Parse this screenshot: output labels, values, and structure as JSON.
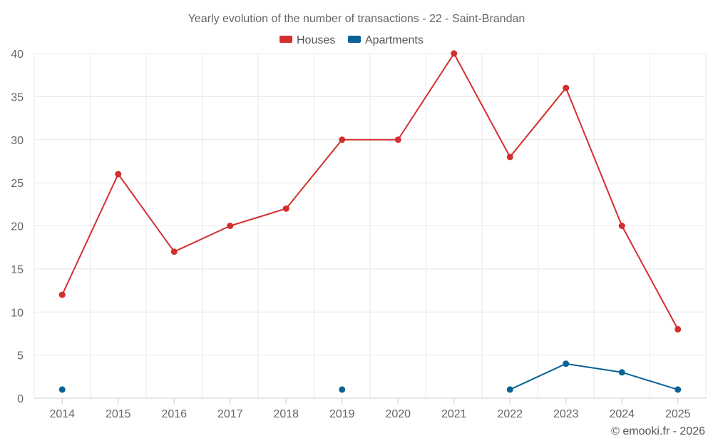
{
  "chart_data": {
    "type": "line",
    "title": "Yearly evolution of the number of transactions - 22 - Saint-Brandan",
    "categories": [
      "2014",
      "2015",
      "2016",
      "2017",
      "2018",
      "2019",
      "2020",
      "2021",
      "2022",
      "2023",
      "2024",
      "2025"
    ],
    "series": [
      {
        "name": "Houses",
        "color": "#d32f2f",
        "values": [
          12,
          26,
          17,
          20,
          22,
          30,
          30,
          40,
          28,
          36,
          20,
          8
        ]
      },
      {
        "name": "Apartments",
        "color": "#0a6396",
        "values": [
          1,
          null,
          null,
          null,
          null,
          1,
          null,
          null,
          1,
          4,
          3,
          1
        ]
      }
    ],
    "ylim": [
      0,
      40
    ],
    "yticks": [
      "0",
      "5",
      "10",
      "15",
      "20",
      "25",
      "30",
      "35",
      "40"
    ],
    "grid": true,
    "legend_position": "top-center",
    "xlabel": "",
    "ylabel": ""
  },
  "credit": "© emooki.fr - 2026"
}
